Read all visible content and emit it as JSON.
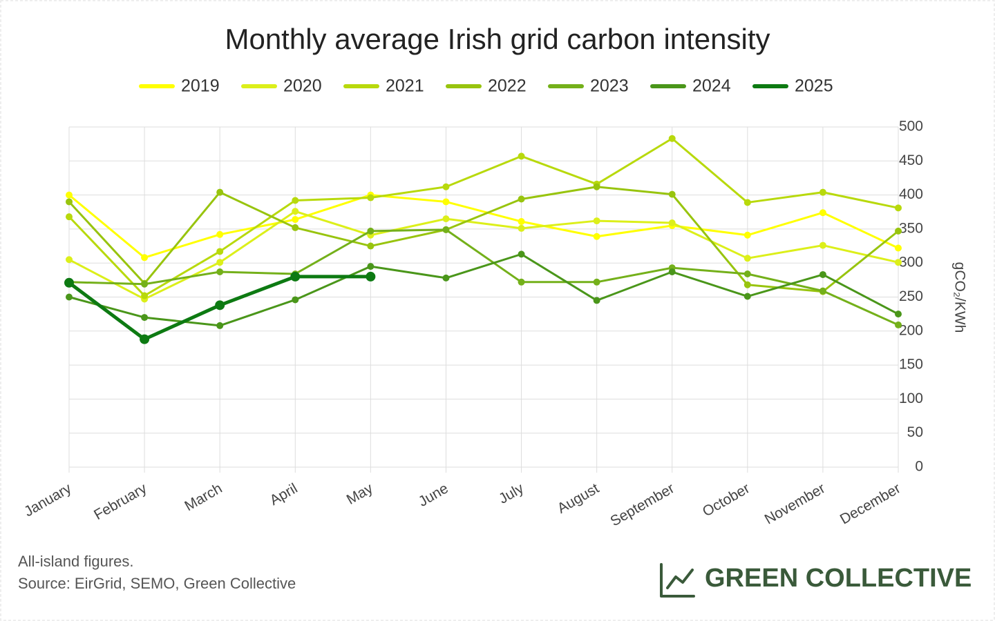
{
  "chart_data": {
    "type": "line",
    "title": "Monthly average Irish grid carbon intensity",
    "y_axis_label": "gCO₂/KWh",
    "categories": [
      "January",
      "February",
      "March",
      "April",
      "May",
      "June",
      "July",
      "August",
      "September",
      "October",
      "November",
      "December"
    ],
    "series": [
      {
        "name": "2019",
        "color": "#ffff00",
        "values": [
          400,
          308,
          342,
          364,
          400,
          390,
          361,
          339,
          355,
          341,
          374,
          322
        ]
      },
      {
        "name": "2020",
        "color": "#dcef1a",
        "values": [
          305,
          247,
          301,
          376,
          341,
          365,
          351,
          362,
          359,
          307,
          326,
          301
        ]
      },
      {
        "name": "2021",
        "color": "#b8d90c",
        "values": [
          368,
          252,
          317,
          392,
          396,
          412,
          457,
          416,
          483,
          389,
          404,
          381
        ]
      },
      {
        "name": "2022",
        "color": "#98c40e",
        "values": [
          390,
          270,
          404,
          352,
          325,
          349,
          394,
          412,
          401,
          268,
          258,
          347
        ]
      },
      {
        "name": "2023",
        "color": "#74b01a",
        "values": [
          272,
          269,
          287,
          284,
          347,
          349,
          272,
          272,
          293,
          284,
          259,
          209
        ]
      },
      {
        "name": "2024",
        "color": "#4a961a",
        "values": [
          250,
          220,
          208,
          246,
          295,
          278,
          313,
          245,
          287,
          251,
          283,
          225
        ]
      },
      {
        "name": "2025",
        "color": "#0d7a12",
        "values": [
          271,
          188,
          238,
          280,
          280,
          null,
          null,
          null,
          null,
          null,
          null,
          null
        ]
      }
    ],
    "ylim": [
      0,
      500
    ],
    "yticks": [
      0,
      50,
      100,
      150,
      200,
      250,
      300,
      350,
      400,
      450,
      500
    ],
    "grid": true,
    "legend": "top",
    "notes": [
      "All-island figures.",
      "Source: EirGrid, SEMO, Green Collective"
    ],
    "brand": "GREEN COLLECTIVE"
  }
}
